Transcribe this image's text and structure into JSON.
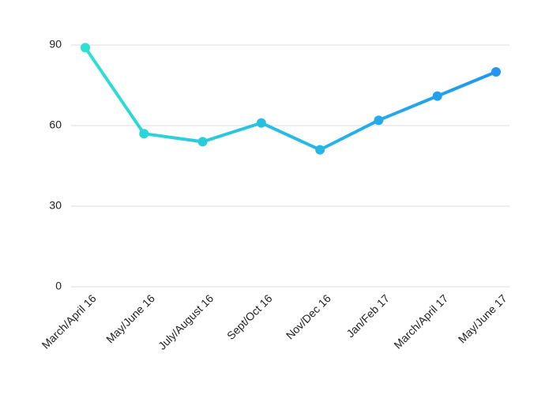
{
  "chart_data": {
    "type": "line",
    "categories": [
      "March/April 16",
      "May/June 16",
      "July/August 16",
      "Sept/Oct 16",
      "Nov/Dec 16",
      "Jan/Feb 17",
      "March/April 17",
      "May/June 17"
    ],
    "values": [
      89,
      57,
      54,
      61,
      51,
      62,
      71,
      80
    ],
    "gradient": [
      "#2ee0d2",
      "#2196f3"
    ],
    "ylim": [
      0,
      90
    ],
    "yticks": [
      0,
      30,
      60,
      90
    ],
    "grid": true
  }
}
